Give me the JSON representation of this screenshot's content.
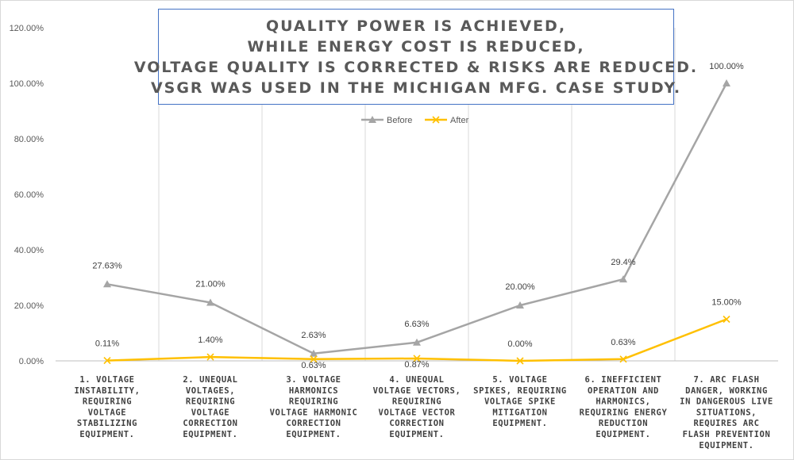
{
  "chart_data": {
    "type": "line",
    "title_lines": [
      "QUALITY POWER IS ACHIEVED,",
      "WHILE ENERGY COST IS REDUCED,",
      "VOLTAGE QUALITY IS CORRECTED & RISKS ARE REDUCED.",
      "VSGR WAS USED IN THE MICHIGAN MFG. CASE STUDY."
    ],
    "categories": [
      [
        "1.      VOLTAGE",
        "INSTABILITY,",
        "REQUIRING",
        "VOLTAGE",
        "STABILIZING",
        "EQUIPMENT."
      ],
      [
        "2.      UNEQUAL",
        "VOLTAGES,",
        "REQUIRING",
        "VOLTAGE",
        "CORRECTION",
        "EQUIPMENT."
      ],
      [
        "3.      VOLTAGE",
        "HARMONICS",
        "REQUIRING",
        "VOLTAGE HARMONIC",
        "CORRECTION",
        "EQUIPMENT."
      ],
      [
        "4.      UNEQUAL",
        "VOLTAGE VECTORS,",
        "REQUIRING",
        "VOLTAGE VECTOR",
        "CORRECTION",
        "EQUIPMENT."
      ],
      [
        "5.      VOLTAGE",
        "SPIKES, REQUIRING",
        "VOLTAGE SPIKE",
        "MITIGATION",
        "EQUIPMENT."
      ],
      [
        "6.    INEFFICIENT",
        "OPERATION AND",
        "HARMONICS,",
        "REQUIRING ENERGY",
        "REDUCTION",
        "EQUIPMENT."
      ],
      [
        "7.     ARC FLASH",
        "DANGER, WORKING",
        "IN DANGEROUS LIVE",
        "SITUATIONS,",
        "REQUIRES ARC",
        "FLASH PREVENTION",
        "EQUIPMENT."
      ]
    ],
    "series": [
      {
        "name": "Before",
        "color": "#a5a5a5",
        "marker": "triangle",
        "values": [
          27.63,
          21.0,
          2.63,
          6.63,
          20.0,
          29.4,
          100.0
        ],
        "labels": [
          "27.63%",
          "21.00%",
          "2.63%",
          "6.63%",
          "20.00%",
          "29.4%",
          "100.00%"
        ]
      },
      {
        "name": "After",
        "color": "#ffc000",
        "marker": "x",
        "values": [
          0.11,
          1.4,
          0.63,
          0.87,
          0.0,
          0.63,
          15.0
        ],
        "labels": [
          "0.11%",
          "1.40%",
          "0.63%",
          "0.87%",
          "0.00%",
          "0.63%",
          "15.00%"
        ]
      }
    ],
    "y_ticks": [
      "0.00%",
      "20.00%",
      "40.00%",
      "60.00%",
      "80.00%",
      "100.00%",
      "120.00%"
    ],
    "ylim": [
      0,
      120
    ],
    "y_step": 20,
    "grid": "vertical",
    "legend_position": "top-center"
  }
}
